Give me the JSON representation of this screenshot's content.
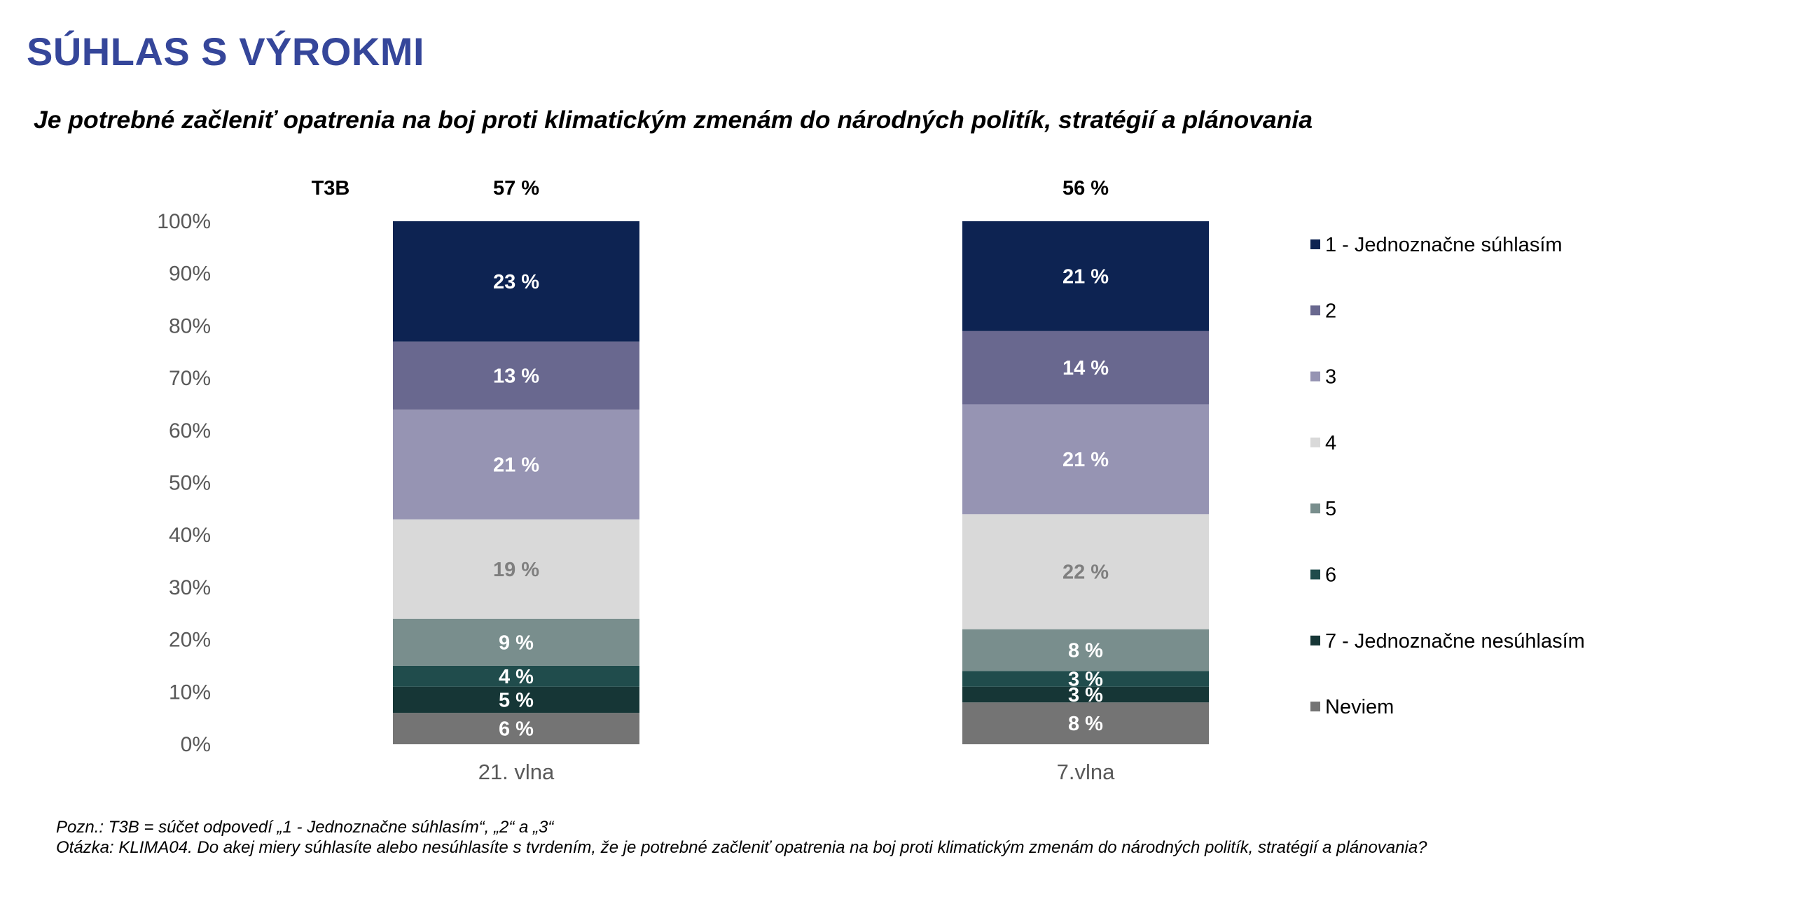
{
  "header": {
    "title": "SÚHLAS S VÝROKMI",
    "subtitle": "Je potrebné začleniť opatrenia na boj proti klimatickým zmenám do národných politík, stratégií a plánovania"
  },
  "chart_data": {
    "type": "bar",
    "stacked": true,
    "orientation": "vertical",
    "title": "Je potrebné začleniť opatrenia na boj proti klimatickým zmenám do národných politík, stratégií a plánovania",
    "xlabel": "",
    "ylabel": "",
    "ylim": [
      0,
      100
    ],
    "yticks": [
      "0%",
      "10%",
      "20%",
      "30%",
      "40%",
      "50%",
      "60%",
      "70%",
      "80%",
      "90%",
      "100%"
    ],
    "grid": false,
    "legend_position": "right",
    "categories": [
      "21. vlna",
      "7.vlna"
    ],
    "t3b_label": "T3B",
    "t3b_values": [
      "57 %",
      "56 %"
    ],
    "series": [
      {
        "name": "1 - Jednoznačne súhlasím",
        "color": "#0D2352",
        "label_color": "#FFFFFF",
        "values": [
          23,
          21
        ]
      },
      {
        "name": "2",
        "color": "#69688F",
        "label_color": "#FFFFFF",
        "values": [
          13,
          14
        ]
      },
      {
        "name": "3",
        "color": "#9694B3",
        "label_color": "#FFFFFF",
        "values": [
          21,
          21
        ]
      },
      {
        "name": "4",
        "color": "#D9D9D9",
        "label_color": "#7F7F7F",
        "values": [
          19,
          22
        ]
      },
      {
        "name": "5",
        "color": "#798E8D",
        "label_color": "#FFFFFF",
        "values": [
          9,
          8
        ]
      },
      {
        "name": "6",
        "color": "#204C4C",
        "label_color": "#FFFFFF",
        "values": [
          4,
          3
        ]
      },
      {
        "name": "7 - Jednoznačne nesúhlasím",
        "color": "#163636",
        "label_color": "#FFFFFF",
        "values": [
          5,
          3
        ]
      },
      {
        "name": "Neviem",
        "color": "#747474",
        "label_color": "#FFFFFF",
        "values": [
          6,
          8
        ]
      }
    ],
    "value_suffix": " %"
  },
  "footnotes": {
    "note": "Pozn.: T3B = súčet odpovedí „1 - Jednoznačne súhlasím“, „2“  a „3“",
    "question": "Otázka: KLIMA04. Do akej miery súhlasíte alebo nesúhlasíte s tvrdením, že je potrebné začleniť opatrenia na boj proti klimatickým zmenám do národných politík, stratégií a plánovania?"
  }
}
